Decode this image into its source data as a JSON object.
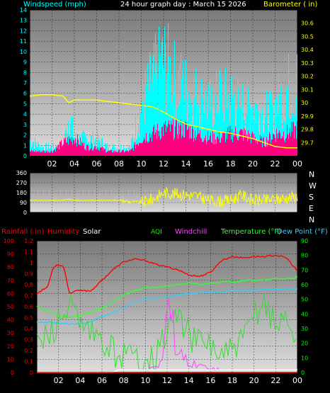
{
  "header": {
    "windspeed_label": "Windspeed (mph)",
    "title": "24 hour graph day : March 15 2026",
    "barometer_label": "Barometer ( in)"
  },
  "legend_row": {
    "rainfall": "Rainfall (.in)",
    "humidity": "Humidity",
    "solar": "Solar",
    "aqi": "AQI",
    "windchill": "Windchill",
    "temperature": "Temperature (°F)",
    "dewpoint": "Dew Point (°F)"
  },
  "colors": {
    "windspeed": "#00ffff",
    "gust": "#ff0080",
    "barometer": "#ffff00",
    "direction": "#ffff00",
    "humidity": "#ff0000",
    "temperature": "#33ff33",
    "dewpoint": "#33ccff",
    "aqi": "#33dd33",
    "windchill": "#ff44ff",
    "solar": "#ffffff",
    "rainfall": "#ff0000",
    "axis_green": "#00ff00"
  },
  "chart_data": [
    {
      "type": "area",
      "name": "wind-barometer",
      "x_tick_labels": [
        "02",
        "04",
        "06",
        "08",
        "10",
        "12",
        "14",
        "16",
        "18",
        "20",
        "22",
        "00"
      ],
      "x_range_hours": [
        0,
        24
      ],
      "left_axis": {
        "ylim": [
          0,
          14
        ],
        "ticks": [
          "0",
          "1",
          "2",
          "3",
          "4",
          "5",
          "6",
          "7",
          "8",
          "9",
          "10",
          "11",
          "12",
          "13",
          "14"
        ]
      },
      "right_axis": {
        "ylim": [
          29.6,
          30.7
        ],
        "ticks": [
          "29.7",
          "29.8",
          "29.9",
          "30",
          "30.1",
          "30.2",
          "30.3",
          "30.4",
          "30.5",
          "30.6"
        ]
      },
      "series": [
        {
          "color": "windspeed",
          "hours": [
            0,
            1,
            2,
            3,
            3.5,
            4,
            5,
            6,
            7,
            8,
            9,
            10,
            11,
            12,
            13,
            14,
            15,
            16,
            17,
            18,
            19,
            20,
            21,
            22,
            23,
            24
          ],
          "values": [
            2,
            1,
            1,
            1,
            5,
            2,
            2,
            2,
            1,
            1,
            1,
            6,
            9,
            11,
            9,
            8,
            7,
            6,
            7,
            7,
            6,
            6,
            5,
            6,
            8,
            9
          ]
        },
        {
          "color": "gust",
          "hours": [
            0,
            1,
            2,
            3,
            4,
            5,
            6,
            7,
            8,
            9,
            10,
            11,
            12,
            13,
            14,
            15,
            16,
            17,
            18,
            19,
            20,
            21,
            22,
            23,
            24
          ],
          "values": [
            0.5,
            0.5,
            0.5,
            1.5,
            2,
            1,
            1,
            0.5,
            0.5,
            0.5,
            2,
            2.5,
            3,
            3,
            3,
            2.5,
            2,
            2,
            2.5,
            2.5,
            2,
            1.5,
            2.5,
            2.5,
            3
          ]
        },
        {
          "color": "barometer",
          "hours": [
            0,
            1,
            2,
            3,
            3.5,
            4,
            5,
            6,
            7,
            8,
            9,
            10,
            11,
            12,
            13,
            14,
            15,
            16,
            17,
            18,
            19,
            20,
            21,
            22,
            23,
            24
          ],
          "values": [
            30.05,
            30.06,
            30.06,
            30.05,
            30.0,
            30.02,
            30.02,
            30.02,
            30.01,
            30.0,
            29.99,
            29.98,
            29.97,
            29.93,
            29.88,
            29.84,
            29.82,
            29.8,
            29.78,
            29.77,
            29.75,
            29.73,
            29.7,
            29.67,
            29.66,
            29.66
          ]
        }
      ]
    },
    {
      "type": "scatter",
      "name": "wind-direction",
      "x_tick_labels": [],
      "x_range_hours": [
        0,
        24
      ],
      "left_axis": {
        "ylim": [
          0,
          360
        ],
        "ticks": [
          "0",
          "90",
          "180",
          "270",
          "360"
        ]
      },
      "right_labels": [
        "N",
        "W",
        "S",
        "E",
        "N"
      ],
      "series": [
        {
          "color": "direction",
          "hours": [
            0,
            3,
            3.5,
            4,
            8,
            9,
            10,
            11,
            11.5,
            12,
            13,
            14,
            15,
            16,
            17,
            18,
            19,
            20,
            21,
            22,
            23,
            24
          ],
          "values": [
            110,
            110,
            120,
            110,
            110,
            95,
            90,
            120,
            150,
            180,
            170,
            160,
            150,
            110,
            100,
            110,
            160,
            110,
            110,
            120,
            130,
            150
          ]
        }
      ]
    },
    {
      "type": "line",
      "name": "temp-humidity",
      "x_tick_labels": [
        "02",
        "04",
        "06",
        "08",
        "10",
        "12",
        "14",
        "16",
        "18",
        "20",
        "22",
        "00"
      ],
      "x_range_hours": [
        0,
        24
      ],
      "left_axis": {
        "ylim": [
          0,
          100
        ],
        "ticks": [
          "0",
          "10",
          "20",
          "30",
          "40",
          "50",
          "60",
          "70",
          "80",
          "90",
          "100"
        ]
      },
      "rain_axis": {
        "ylim": [
          0,
          1.2
        ],
        "ticks": [
          "0",
          "0.1",
          "0.2",
          "0.3",
          "0.4",
          "0.5",
          "0.6",
          "0.7",
          "0.8",
          "0.9",
          "1",
          "1.1",
          "1.2"
        ]
      },
      "right_axis": {
        "ylim": [
          0,
          90
        ],
        "ticks": [
          "0",
          "10",
          "20",
          "30",
          "40",
          "50",
          "60",
          "70",
          "80",
          "90"
        ]
      },
      "series": [
        {
          "color": "humidity",
          "axis": "left",
          "hours": [
            0,
            1,
            1.5,
            2,
            2.5,
            3,
            3.5,
            4,
            5,
            6,
            7,
            8,
            9,
            10,
            11,
            12,
            13,
            14,
            15,
            16,
            17,
            18,
            19,
            20,
            21,
            22,
            23,
            24
          ],
          "values": [
            60,
            65,
            80,
            82,
            80,
            60,
            62,
            62,
            62,
            70,
            78,
            84,
            86,
            85,
            82,
            80,
            78,
            74,
            73,
            76,
            85,
            88,
            87,
            88,
            88,
            89,
            87,
            77
          ]
        },
        {
          "color": "temperature",
          "axis": "right",
          "hours": [
            0,
            1,
            2,
            3,
            4,
            5,
            6,
            7,
            8,
            9,
            10,
            11,
            12,
            13,
            14,
            15,
            16,
            17,
            18,
            19,
            20,
            21,
            22,
            23,
            24
          ],
          "values": [
            45,
            42,
            39,
            38,
            39,
            41,
            44,
            48,
            53,
            56,
            58,
            58,
            59,
            60,
            61,
            60,
            61,
            62,
            62,
            63,
            63,
            63,
            64,
            64,
            65
          ]
        },
        {
          "color": "dewpoint",
          "axis": "right",
          "hours": [
            0,
            1,
            2,
            3,
            4,
            5,
            6,
            7,
            8,
            9,
            10,
            11,
            12,
            13,
            14,
            15,
            16,
            17,
            18,
            19,
            20,
            21,
            22,
            23,
            24
          ],
          "values": [
            34,
            34,
            34,
            33,
            33,
            35,
            38,
            41,
            44,
            48,
            50,
            51,
            52,
            53,
            54,
            54,
            55,
            55,
            56,
            56,
            56,
            57,
            57,
            57,
            57
          ]
        },
        {
          "color": "aqi",
          "axis": "right",
          "hours": [
            0,
            1,
            2,
            3,
            4,
            5,
            6,
            7,
            8,
            9,
            10,
            11,
            12,
            13,
            14,
            15,
            16,
            17,
            18,
            19,
            20,
            21,
            22,
            23,
            24
          ],
          "values": [
            20,
            25,
            35,
            45,
            30,
            25,
            20,
            15,
            12,
            10,
            12,
            10,
            30,
            40,
            25,
            20,
            20,
            10,
            15,
            20,
            40,
            50,
            30,
            40,
            20
          ]
        },
        {
          "color": "windchill",
          "axis": "right",
          "hours": [
            10,
            11,
            11.5,
            12,
            12.5,
            13,
            14,
            15,
            16,
            17
          ],
          "values": [
            2,
            5,
            10,
            40,
            45,
            15,
            8,
            5,
            4,
            2
          ]
        },
        {
          "color": "solar",
          "axis": "left",
          "hours": [
            0,
            7,
            7.5,
            24
          ],
          "values": [
            0,
            0,
            2,
            2
          ]
        },
        {
          "color": "rainfall",
          "axis": "rain",
          "hours": [
            0,
            24
          ],
          "values": [
            0,
            0
          ]
        }
      ]
    }
  ]
}
